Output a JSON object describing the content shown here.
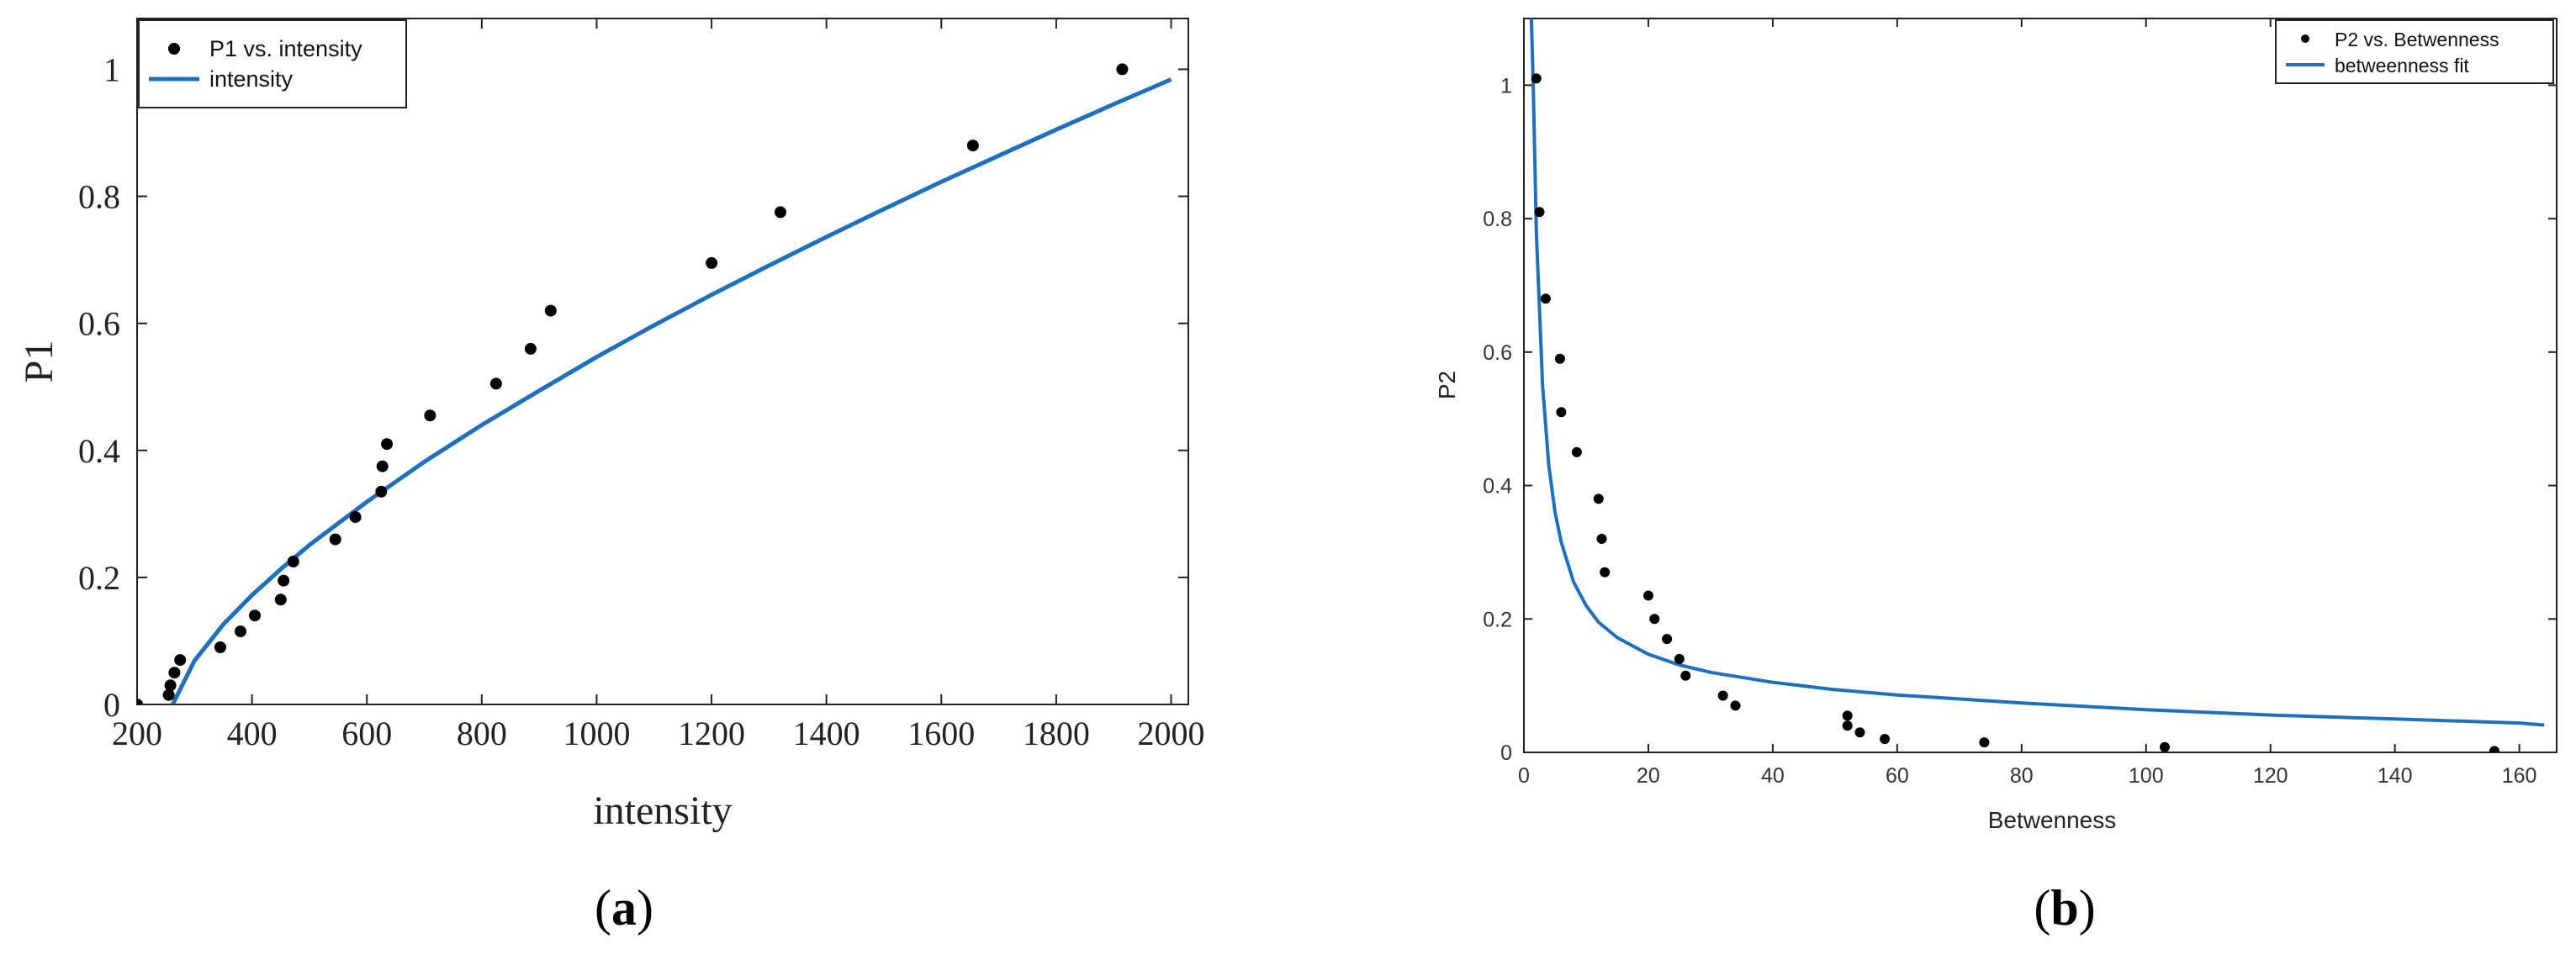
{
  "chart_data": [
    {
      "type": "scatter",
      "panel_label": {
        "open": "(",
        "letter": "a",
        "close": ")"
      },
      "xlabel": "intensity",
      "ylabel": "P1",
      "xlim": [
        200,
        2030
      ],
      "ylim": [
        0,
        1.08
      ],
      "xticks": [
        200,
        400,
        600,
        800,
        1000,
        1200,
        1400,
        1600,
        1800,
        2000
      ],
      "xtick_labels": [
        "200",
        "400",
        "600",
        "800",
        "1000",
        "1200",
        "1400",
        "1600",
        "1800",
        "2000"
      ],
      "yticks": [
        0,
        0.2,
        0.4,
        0.6,
        0.8,
        1
      ],
      "ytick_labels": [
        "0",
        "0.2",
        "0.4",
        "0.6",
        "0.8",
        "1"
      ],
      "grid": false,
      "legend_position": "top-left",
      "legend": [
        {
          "label": "P1 vs. intensity",
          "kind": "marker"
        },
        {
          "label": "intensity",
          "kind": "line"
        }
      ],
      "series": [
        {
          "name": "P1 vs. intensity",
          "kind": "points",
          "color": "#000000",
          "x": [
            200,
            255,
            258,
            265,
            275,
            345,
            380,
            405,
            450,
            455,
            472,
            545,
            580,
            625,
            627,
            635,
            710,
            825,
            885,
            920,
            1200,
            1320,
            1655,
            1915
          ],
          "y": [
            0,
            0.015,
            0.03,
            0.05,
            0.07,
            0.09,
            0.115,
            0.14,
            0.165,
            0.195,
            0.225,
            0.26,
            0.295,
            0.335,
            0.375,
            0.41,
            0.455,
            0.505,
            0.56,
            0.62,
            0.695,
            0.775,
            0.88,
            1.0
          ]
        },
        {
          "name": "intensity",
          "kind": "line",
          "color": "#1f6fbf",
          "x": [
            262,
            300,
            350,
            400,
            450,
            500,
            600,
            700,
            800,
            900,
            1000,
            1100,
            1200,
            1300,
            1400,
            1500,
            1600,
            1700,
            1800,
            1900,
            2000
          ],
          "y": [
            0.0,
            0.069,
            0.126,
            0.172,
            0.213,
            0.251,
            0.319,
            0.382,
            0.44,
            0.494,
            0.547,
            0.597,
            0.645,
            0.691,
            0.736,
            0.78,
            0.823,
            0.864,
            0.905,
            0.945,
            0.984
          ]
        }
      ]
    },
    {
      "type": "scatter",
      "panel_label": {
        "open": "(",
        "letter": "b",
        "close": ")"
      },
      "xlabel": "Betwenness",
      "ylabel": "P2",
      "xlim": [
        0,
        166
      ],
      "ylim": [
        0,
        1.1
      ],
      "xticks": [
        0,
        20,
        40,
        60,
        80,
        100,
        120,
        140,
        160
      ],
      "xtick_labels": [
        "0",
        "20",
        "40",
        "60",
        "80",
        "100",
        "120",
        "140",
        "160"
      ],
      "yticks": [
        0,
        0.2,
        0.4,
        0.6,
        0.8,
        1
      ],
      "ytick_labels": [
        "0",
        "0.2",
        "0.4",
        "0.6",
        "0.8",
        "1"
      ],
      "grid": false,
      "legend_position": "top-right",
      "legend": [
        {
          "label": "P2 vs. Betwenness",
          "kind": "marker"
        },
        {
          "label": "betweenness fit",
          "kind": "line"
        }
      ],
      "series": [
        {
          "name": "P2 vs. Betwenness",
          "kind": "points",
          "color": "#000000",
          "x": [
            2,
            2.5,
            3.5,
            5.8,
            6,
            8.5,
            12,
            12.5,
            13,
            20,
            21,
            23,
            25,
            26,
            32,
            34,
            52,
            52,
            54,
            58,
            74,
            103,
            156
          ],
          "y": [
            1.01,
            0.81,
            0.68,
            0.59,
            0.51,
            0.45,
            0.38,
            0.32,
            0.27,
            0.235,
            0.2,
            0.17,
            0.14,
            0.115,
            0.085,
            0.07,
            0.055,
            0.04,
            0.03,
            0.02,
            0.015,
            0.008,
            0.002
          ]
        },
        {
          "name": "betweenness fit",
          "kind": "line",
          "color": "#1f6fbf",
          "x": [
            1.2,
            1.5,
            2,
            3,
            4,
            5,
            6,
            8,
            10,
            12,
            15,
            20,
            25,
            30,
            40,
            50,
            60,
            80,
            100,
            120,
            140,
            160,
            164
          ],
          "y": [
            1.1,
            1.0,
            0.78,
            0.55,
            0.43,
            0.36,
            0.315,
            0.255,
            0.22,
            0.195,
            0.172,
            0.147,
            0.131,
            0.12,
            0.105,
            0.094,
            0.086,
            0.074,
            0.064,
            0.056,
            0.05,
            0.044,
            0.041
          ]
        }
      ]
    }
  ]
}
